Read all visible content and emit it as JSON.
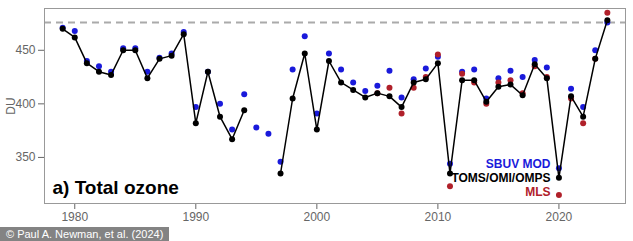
{
  "chart_data": {
    "type": "line",
    "title": "a) Total ozone",
    "y_label": "DU",
    "credit": "© Paul A. Newman, et al. (2024)",
    "legend": "lower right",
    "grid": false,
    "xlim": [
      1977.5,
      2025.5
    ],
    "xticks": [
      1980,
      1990,
      2000,
      2010,
      2020
    ],
    "ylim": [
      307,
      489
    ],
    "yticks": [
      350,
      400,
      450
    ],
    "reference_lines": [
      {
        "value": 476,
        "color": "#aaaaaa",
        "line_style": "dashed"
      }
    ],
    "x": [
      1979,
      1980,
      1981,
      1982,
      1983,
      1984,
      1985,
      1986,
      1987,
      1988,
      1989,
      1990,
      1991,
      1992,
      1993,
      1994,
      1995,
      1996,
      1997,
      1998,
      1999,
      2000,
      2001,
      2002,
      2003,
      2004,
      2005,
      2006,
      2007,
      2008,
      2009,
      2010,
      2011,
      2012,
      2013,
      2014,
      2015,
      2016,
      2017,
      2018,
      2019,
      2020,
      2021,
      2022,
      2023,
      2024
    ],
    "series": [
      {
        "name": "SBUV MOD",
        "color": "#1a1adb",
        "type": "scatter",
        "marker": "circle",
        "line_style": "none",
        "values": [
          471,
          468,
          440,
          435,
          430,
          452,
          452,
          430,
          443,
          447,
          467,
          397,
          430,
          400,
          376,
          409,
          378,
          372,
          346,
          432,
          463,
          391,
          447,
          432,
          420,
          412,
          417,
          431,
          406,
          423,
          433,
          444,
          344,
          430,
          432,
          405,
          424,
          431,
          425,
          441,
          434,
          340,
          414,
          397,
          450,
          476
        ]
      },
      {
        "name": "TOMS/OMI/OMPS",
        "color": "#000000",
        "type": "line",
        "marker": "circle",
        "line_style": "solid",
        "values": [
          470,
          462,
          438,
          430,
          427,
          450,
          450,
          424,
          442,
          445,
          465,
          382,
          430,
          388,
          367,
          394,
          null,
          null,
          335,
          405,
          447,
          376,
          440,
          420,
          413,
          406,
          410,
          407,
          397,
          420,
          423,
          438,
          335,
          422,
          422,
          402,
          416,
          418,
          408,
          437,
          424,
          331,
          407,
          388,
          442,
          478
        ]
      },
      {
        "name": "MLS",
        "color": "#b0202a",
        "type": "scatter",
        "marker": "circle",
        "line_style": "none",
        "values": [
          null,
          null,
          null,
          null,
          null,
          null,
          null,
          null,
          null,
          null,
          null,
          null,
          null,
          null,
          null,
          null,
          null,
          null,
          null,
          null,
          null,
          null,
          null,
          null,
          null,
          null,
          410,
          415,
          391,
          415,
          425,
          446,
          323,
          428,
          420,
          400,
          420,
          422,
          410,
          435,
          425,
          315,
          405,
          382,
          442,
          485
        ]
      }
    ]
  }
}
